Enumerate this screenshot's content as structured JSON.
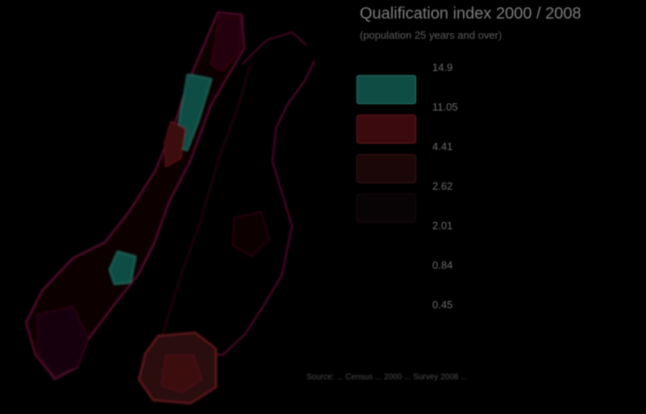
{
  "map": {
    "title": "Qualification index 2000 / 2008",
    "subtitle": "(population 25 years and over)",
    "source": "Source: ... Census ... 2000 ... Survey 2008 ..."
  },
  "legend": {
    "breaks": [
      "14.9",
      "11.05",
      "4.41",
      "2.62",
      "2.01",
      "0.84",
      "0.45"
    ],
    "classes": [
      {
        "fill": "#0f4d44",
        "stroke": "#2a7a6b"
      },
      {
        "fill": "#3a0a0e",
        "stroke": "#6e1a22"
      },
      {
        "fill": "#1b0708",
        "stroke": "#3d1518"
      },
      {
        "fill": "#080304",
        "stroke": "#1c0a0c"
      }
    ]
  },
  "colors": {
    "background": "#000000",
    "boundary": "#5a1030",
    "high_class": "#0f4d44",
    "mid_high_class": "#3a0a0e"
  }
}
